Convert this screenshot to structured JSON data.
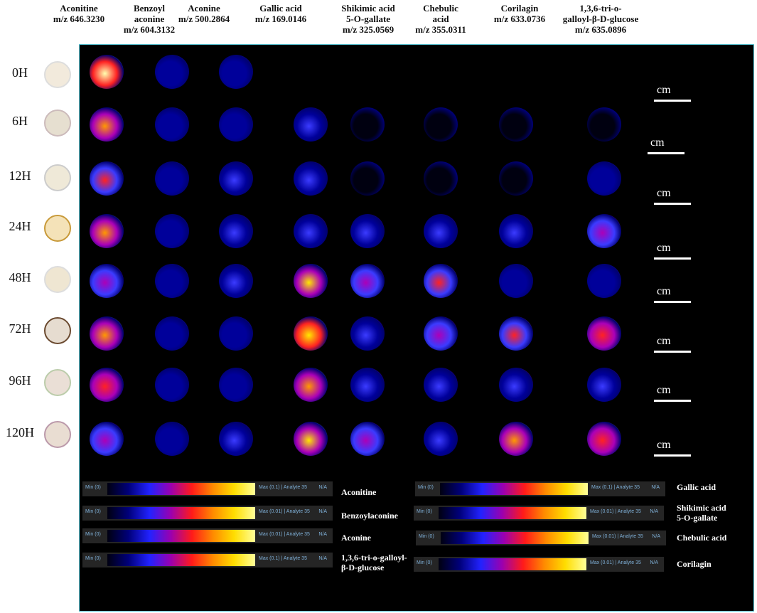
{
  "columns": [
    "Aconitine\nm/z 646.3230",
    "Benzoyl\naconine\nm/z 604.3132",
    "Aconine\nm/z 500.2864",
    "Gallic acid\nm/z 169.0146",
    "Shikimic acid\n5-O-gallate\nm/z 325.0569",
    "Chebulic\nacid\nm/z 355.0311",
    "Corilagin\nm/z 633.0736",
    "1,3,6-tri-o-\ngalloyl-β-D-glucose\nm/z 635.0896"
  ],
  "rows": [
    "0H",
    "6H",
    "12H",
    "24H",
    "48H",
    "72H",
    "96H",
    "120H"
  ],
  "scale_label": "cm",
  "colorbars": [
    {
      "min": "Min (0)",
      "max": "Max (0.1) | Analyte 35",
      "na": "N/A",
      "name": "Aconitine"
    },
    {
      "min": "Min (0)",
      "max": "Max (0.01) | Analyte 35",
      "na": "N/A",
      "name": "Benzoylaconine"
    },
    {
      "min": "Min (0)",
      "max": "Max (0.01) | Analyte 35",
      "na": "N/A",
      "name": "Aconine"
    },
    {
      "min": "Min (0)",
      "max": "Max (0.1) | Analyte 35",
      "na": "N/A",
      "name": "1,3,6-tri-o-galloyl-\nβ-D-glucose"
    },
    {
      "min": "Min (0)",
      "max": "Max (0.1) | Analyte 35",
      "na": "N/A",
      "name": "Gallic acid"
    },
    {
      "min": "Min (0)",
      "max": "Max (0.01) | Analyte 35",
      "na": "N/A",
      "name": "Shikimic acid\n5-O-gallate"
    },
    {
      "min": "Min (0)",
      "max": "Max (0.01) | Analyte 35",
      "na": "N/A",
      "name": "Chebulic acid"
    },
    {
      "min": "Min (0)",
      "max": "Max (0.01) | Analyte 35",
      "na": "N/A",
      "name": "Corilagin"
    }
  ],
  "intensity": [
    [
      0.95,
      0.12,
      0.2,
      0,
      0,
      0,
      0,
      0
    ],
    [
      0.7,
      0.12,
      0.18,
      0.22,
      0.03,
      0.05,
      0.03,
      0.03
    ],
    [
      0.5,
      0.15,
      0.25,
      0.3,
      0.04,
      0.06,
      0.04,
      0.18
    ],
    [
      0.65,
      0.15,
      0.22,
      0.35,
      0.3,
      0.22,
      0.35,
      0.42
    ],
    [
      0.4,
      0.12,
      0.3,
      0.8,
      0.45,
      0.5,
      0.14,
      0.2
    ],
    [
      0.78,
      0.12,
      0.2,
      0.85,
      0.3,
      0.38,
      0.55,
      0.62
    ],
    [
      0.62,
      0.14,
      0.2,
      0.75,
      0.25,
      0.22,
      0.35,
      0.32
    ],
    [
      0.45,
      0.15,
      0.25,
      0.82,
      0.48,
      0.35,
      0.68,
      0.62
    ]
  ],
  "colors": {
    "panel_bg": "#000000",
    "border": "#5cc6d6",
    "scalebar": "#ffffff",
    "colorbar_text": "#7fb0d8"
  }
}
